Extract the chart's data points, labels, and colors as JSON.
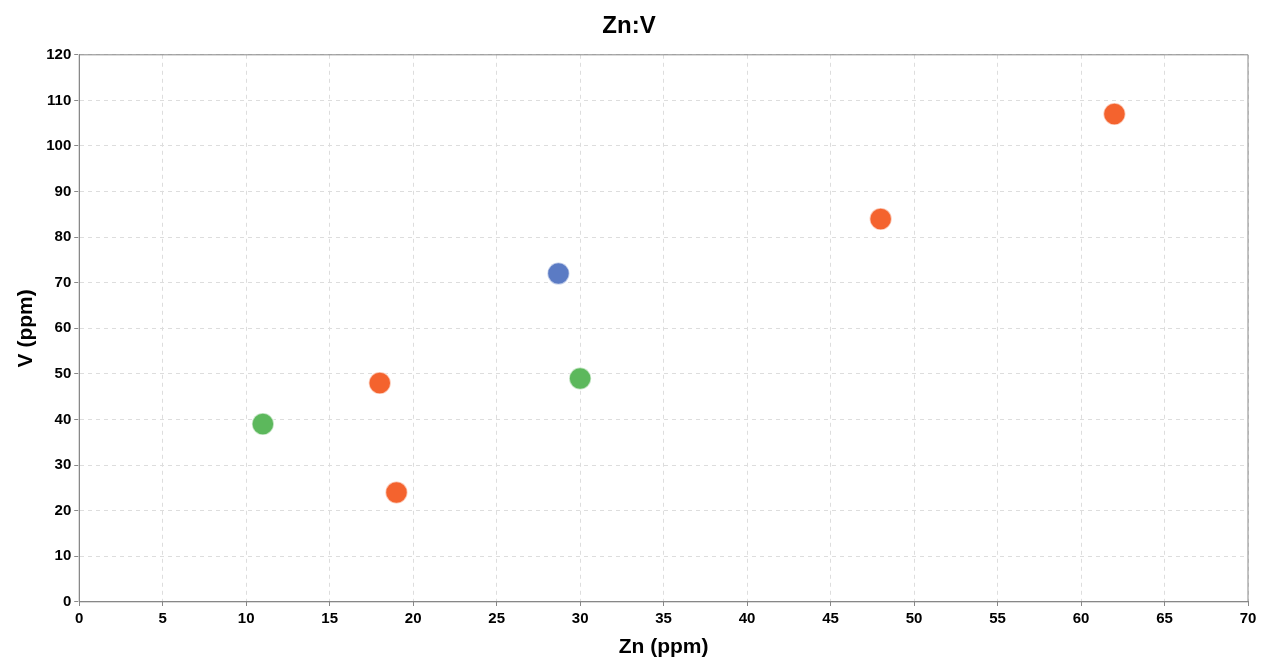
{
  "chart_data": {
    "type": "scatter",
    "title": "Zn:V",
    "xlabel": "Zn (ppm)",
    "ylabel": "V (ppm)",
    "xlim": [
      0,
      70
    ],
    "xticks": [
      0,
      5,
      10,
      15,
      20,
      25,
      30,
      35,
      40,
      45,
      50,
      55,
      60,
      65,
      70
    ],
    "ylim": [
      0,
      120
    ],
    "yticks": [
      0,
      10,
      20,
      30,
      40,
      50,
      60,
      70,
      80,
      90,
      100,
      110,
      120
    ],
    "grid": true,
    "legend": false,
    "marker": "circle",
    "series": [
      {
        "color": "#5b7bc4",
        "x": [
          28.7
        ],
        "values": [
          72
        ]
      },
      {
        "color": "#5cb85c",
        "x": [
          11,
          30
        ],
        "values": [
          39,
          49
        ]
      },
      {
        "color": "#f4632e",
        "x": [
          18,
          19,
          48,
          62
        ],
        "values": [
          48,
          24,
          84,
          107
        ]
      }
    ]
  }
}
